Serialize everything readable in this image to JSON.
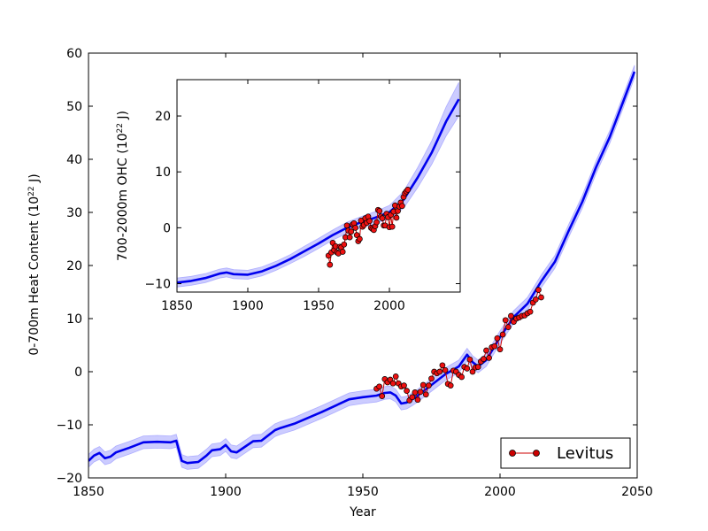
{
  "chart_data": [
    {
      "type": "line",
      "role": "main",
      "xlabel": "Year",
      "ylabel_parts": {
        "pre": "0-700m Heat Content (10",
        "sup": "22",
        "post": " J)"
      },
      "xlim": [
        1850,
        2050
      ],
      "ylim": [
        -20,
        60
      ],
      "xticks": [
        1850,
        1900,
        1950,
        2000,
        2050
      ],
      "yticks": [
        -20,
        -10,
        0,
        10,
        20,
        30,
        40,
        50,
        60
      ],
      "ytick_labels": [
        "−20",
        "−10",
        "0",
        "10",
        "20",
        "30",
        "40",
        "50",
        "60"
      ],
      "legend": {
        "location": "bottom-right",
        "entries": [
          {
            "name": "Levitus",
            "color": "#cc0000"
          }
        ]
      },
      "series": [
        {
          "name": "model",
          "color": "#0000ee",
          "band_color": "#9999ff",
          "band_halfwidth": 1.2,
          "x": [
            1850,
            1852,
            1854,
            1856,
            1858,
            1860,
            1865,
            1870,
            1875,
            1880,
            1882,
            1884,
            1886,
            1890,
            1893,
            1895,
            1898,
            1900,
            1902,
            1904,
            1906,
            1910,
            1913,
            1915,
            1918,
            1920,
            1925,
            1930,
            1935,
            1940,
            1945,
            1950,
            1955,
            1958,
            1960,
            1962,
            1964,
            1966,
            1968,
            1970,
            1975,
            1980,
            1985,
            1988,
            1990,
            1992,
            1995,
            2000,
            2005,
            2010,
            2015,
            2020,
            2025,
            2030,
            2035,
            2040,
            2045,
            2049
          ],
          "y": [
            -16.8,
            -15.8,
            -15.3,
            -16.3,
            -16.0,
            -15.2,
            -14.3,
            -13.3,
            -13.2,
            -13.3,
            -13.0,
            -16.8,
            -17.2,
            -17.0,
            -15.8,
            -14.8,
            -14.6,
            -13.8,
            -15.0,
            -15.2,
            -14.5,
            -13.1,
            -13.0,
            -12.2,
            -11.0,
            -10.6,
            -9.8,
            -8.7,
            -7.6,
            -6.4,
            -5.2,
            -4.8,
            -4.5,
            -4.0,
            -3.9,
            -4.5,
            -6.0,
            -5.8,
            -5.2,
            -4.5,
            -2.5,
            -0.5,
            1.0,
            3.2,
            1.8,
            1.0,
            2.2,
            6.5,
            10.3,
            12.8,
            17.0,
            20.7,
            26.5,
            32.0,
            38.5,
            44.2,
            51.0,
            56.5
          ]
        },
        {
          "name": "Levitus",
          "color": "#cc0000",
          "marker_color": "#ee1111",
          "x": [
            1955,
            1956,
            1957,
            1958,
            1959,
            1960,
            1961,
            1962,
            1963,
            1964,
            1965,
            1966,
            1967,
            1968,
            1969,
            1970,
            1971,
            1972,
            1973,
            1974,
            1975,
            1976,
            1977,
            1978,
            1979,
            1980,
            1981,
            1982,
            1983,
            1984,
            1985,
            1986,
            1987,
            1988,
            1989,
            1990,
            1991,
            1992,
            1993,
            1994,
            1995,
            1996,
            1997,
            1998,
            1999,
            2000,
            2001,
            2002,
            2003,
            2004,
            2005,
            2006,
            2007,
            2008,
            2009,
            2010,
            2011,
            2012,
            2013,
            2014,
            2015
          ],
          "y": [
            -3.2,
            -2.8,
            -4.6,
            -1.4,
            -2.0,
            -1.5,
            -2.2,
            -0.9,
            -2.2,
            -2.8,
            -2.6,
            -3.6,
            -5.4,
            -4.8,
            -3.9,
            -5.3,
            -3.8,
            -2.5,
            -4.3,
            -2.6,
            -1.3,
            0.0,
            -0.3,
            0.0,
            1.2,
            0.3,
            -2.3,
            -2.6,
            0.2,
            0.0,
            -0.6,
            -1.0,
            0.9,
            0.6,
            2.3,
            0.0,
            0.8,
            0.9,
            1.9,
            2.4,
            4.0,
            2.6,
            4.6,
            4.8,
            6.3,
            4.2,
            7.0,
            9.7,
            8.4,
            10.5,
            9.4,
            10.0,
            10.2,
            10.5,
            10.6,
            11.0,
            11.3,
            13.0,
            13.6,
            15.4,
            14.0
          ]
        }
      ]
    },
    {
      "type": "line",
      "role": "inset",
      "xlabel": "",
      "ylabel_parts": {
        "pre": "700-2000m OHC (10",
        "sup": "22",
        "post": " J)"
      },
      "xlim": [
        1850,
        2050
      ],
      "ylim": [
        -11.5,
        26.5
      ],
      "xticks": [
        1850,
        1900,
        1950,
        2000
      ],
      "yticks": [
        -10,
        0,
        10,
        20
      ],
      "ytick_labels": [
        "−10",
        "0",
        "10",
        "20"
      ],
      "series": [
        {
          "name": "model",
          "color": "#0000ee",
          "band_color": "#9999ff",
          "x": [
            1850,
            1860,
            1870,
            1880,
            1885,
            1890,
            1900,
            1910,
            1920,
            1930,
            1940,
            1950,
            1960,
            1970,
            1980,
            1990,
            2000,
            2010,
            2020,
            2030,
            2040,
            2049
          ],
          "y": [
            -9.8,
            -9.5,
            -9.0,
            -8.2,
            -8.0,
            -8.3,
            -8.4,
            -7.8,
            -6.8,
            -5.6,
            -4.2,
            -2.8,
            -1.3,
            0.0,
            1.0,
            1.8,
            2.8,
            5.0,
            9.0,
            13.5,
            19.0,
            23.0
          ],
          "band_halfwidth": [
            0.8,
            0.8,
            0.8,
            0.8,
            0.8,
            0.8,
            0.8,
            0.8,
            0.8,
            0.8,
            0.9,
            0.9,
            0.9,
            1.0,
            1.0,
            1.1,
            1.2,
            1.5,
            1.8,
            2.1,
            2.6,
            3.0
          ]
        },
        {
          "name": "Levitus",
          "color": "#cc0000",
          "marker_color": "#ee1111",
          "x": [
            1957,
            1958,
            1959,
            1960,
            1961,
            1962,
            1963,
            1964,
            1965,
            1966,
            1967,
            1968,
            1969,
            1970,
            1971,
            1972,
            1973,
            1974,
            1975,
            1976,
            1977,
            1978,
            1979,
            1980,
            1981,
            1982,
            1983,
            1984,
            1985,
            1986,
            1987,
            1988,
            1989,
            1990,
            1991,
            1992,
            1993,
            1994,
            1995,
            1996,
            1997,
            1998,
            1999,
            2000,
            2001,
            2002,
            2003,
            2004,
            2005,
            2006,
            2007,
            2008,
            2009,
            2010,
            2011,
            2012,
            2013
          ],
          "y": [
            -5.0,
            -6.6,
            -4.4,
            -2.7,
            -4.0,
            -3.3,
            -4.4,
            -4.6,
            -3.4,
            -3.5,
            -4.3,
            -3.0,
            -1.7,
            0.4,
            -0.5,
            -1.7,
            -0.7,
            0.6,
            0.8,
            0.0,
            -1.3,
            -2.4,
            -2.0,
            1.3,
            0.2,
            0.5,
            1.7,
            0.9,
            2.0,
            1.2,
            0.0,
            -0.2,
            -0.4,
            0.3,
            1.0,
            3.2,
            3.0,
            2.0,
            1.7,
            0.4,
            0.4,
            2.5,
            1.9,
            0.1,
            2.3,
            0.2,
            2.9,
            4.0,
            1.8,
            3.0,
            3.8,
            4.5,
            3.9,
            5.5,
            6.2,
            6.5,
            6.8
          ]
        }
      ]
    }
  ]
}
